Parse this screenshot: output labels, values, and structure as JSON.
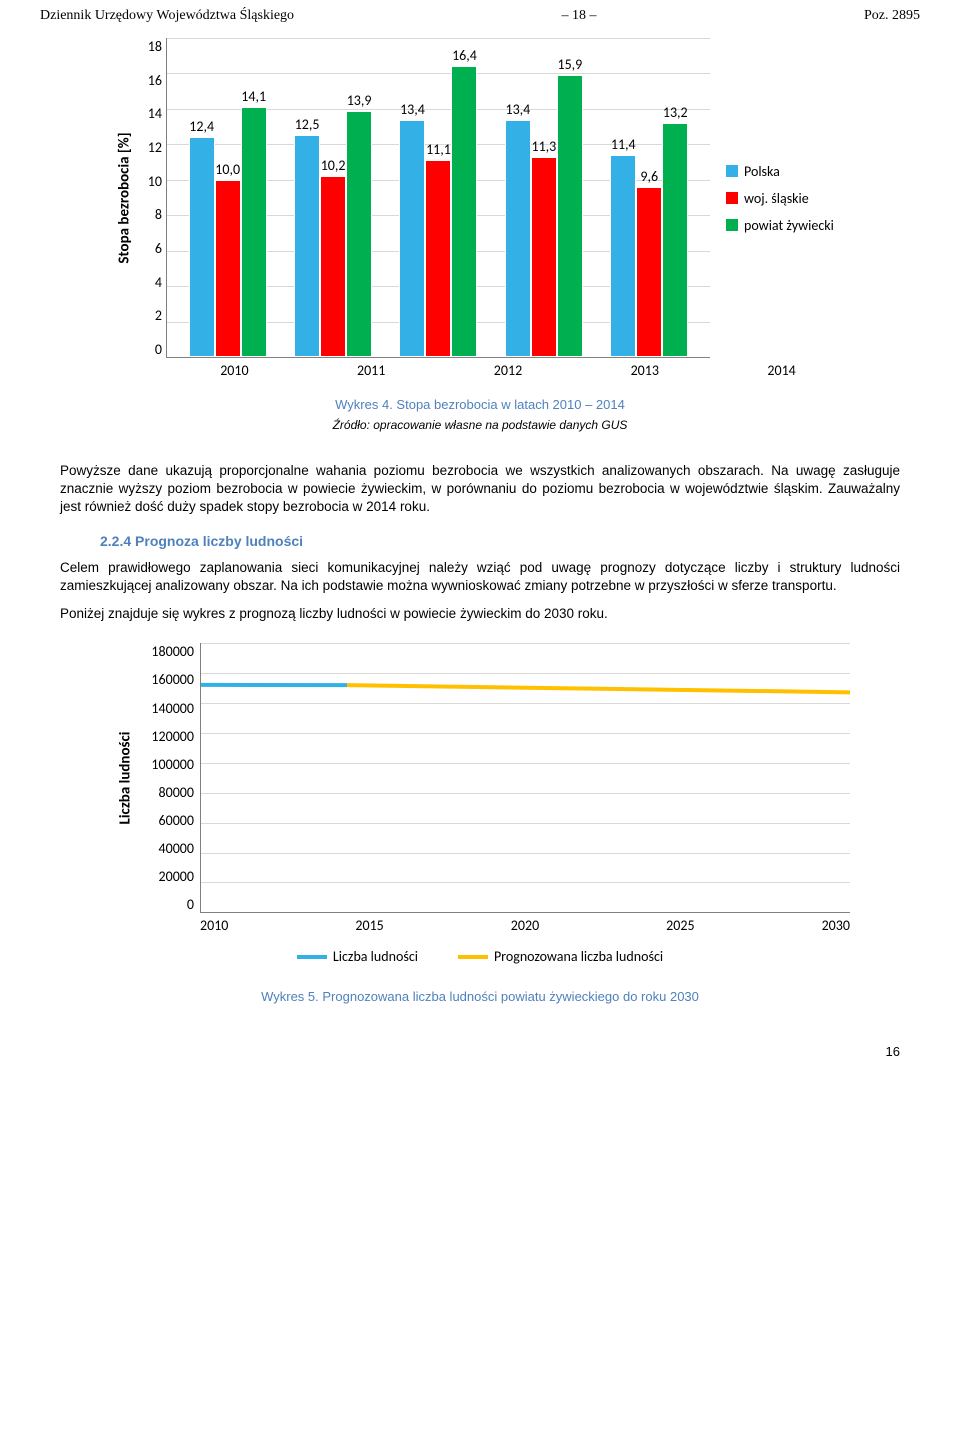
{
  "header": {
    "left": "Dziennik Urzędowy Województwa Śląskiego",
    "center": "– 18 –",
    "right": "Poz. 2895"
  },
  "chart1": {
    "type": "bar",
    "y_label": "Stopa bezrobocia [%]",
    "y_max": 18,
    "y_ticks": [
      "18",
      "16",
      "14",
      "12",
      "10",
      "8",
      "6",
      "4",
      "2",
      "0"
    ],
    "categories": [
      "2010",
      "2011",
      "2012",
      "2013",
      "2014"
    ],
    "series": [
      {
        "name": "Polska",
        "color": "#33b1e6",
        "values": [
          12.4,
          12.5,
          13.4,
          13.4,
          11.4
        ],
        "labels": [
          "12,4",
          "12,5",
          "13,4",
          "13,4",
          "11,4"
        ]
      },
      {
        "name": "woj. śląskie",
        "color": "#ff0000",
        "values": [
          10.0,
          10.2,
          11.1,
          11.3,
          9.6
        ],
        "labels": [
          "10,0",
          "10,2",
          "11,1",
          "11,3",
          "9,6"
        ]
      },
      {
        "name": "powiat żywiecki",
        "color": "#00b050",
        "values": [
          14.1,
          13.9,
          16.4,
          15.9,
          13.2
        ],
        "labels": [
          "14,1",
          "13,9",
          "16,4",
          "15,9",
          "13,2"
        ]
      }
    ],
    "grid_color": "#d9d9d9",
    "bg": "#ffffff",
    "caption": "Wykres 4. Stopa bezrobocia w latach 2010 – 2014",
    "source": "Źródło: opracowanie własne na podstawie danych GUS"
  },
  "paragraphs": {
    "p1": "Powyższe dane ukazują proporcjonalne wahania poziomu bezrobocia we wszystkich analizowanych obszarach. Na uwagę zasługuje znacznie wyższy poziom bezrobocia w powiecie żywieckim, w porównaniu do poziomu bezrobocia w województwie śląskim. Zauważalny jest również dość duży spadek stopy bezrobocia w 2014 roku.",
    "section": "2.2.4 Prognoza liczby ludności",
    "p2": "Celem prawidłowego zaplanowania sieci komunikacyjnej należy wziąć pod uwagę prognozy dotyczące liczby i struktury ludności zamieszkującej analizowany obszar. Na ich podstawie można wywnioskować zmiany potrzebne w przyszłości w sferze transportu.",
    "p3": "Poniżej znajduje się wykres z prognozą liczby ludności w powiecie żywieckim do 2030 roku."
  },
  "chart2": {
    "type": "line",
    "y_label": "Liczba ludności",
    "y_max": 180000,
    "y_ticks": [
      "180000",
      "160000",
      "140000",
      "120000",
      "100000",
      "80000",
      "60000",
      "40000",
      "20000",
      "0"
    ],
    "x_ticks": [
      "2010",
      "2015",
      "2020",
      "2025",
      "2030"
    ],
    "series": [
      {
        "name": "Liczba ludności",
        "color": "#33b1e6",
        "width": 4,
        "x_range": [
          2010,
          2014.5
        ],
        "y": [
          152000,
          151800
        ]
      },
      {
        "name": "Prognozowana liczba ludności",
        "color": "#ffc000",
        "width": 4,
        "x_range": [
          2014.5,
          2030
        ],
        "y": [
          151800,
          147000
        ]
      }
    ],
    "grid_color": "#d9d9d9",
    "caption": "Wykres 5. Prognozowana liczba ludności powiatu żywieckiego do roku 2030"
  },
  "pagenum": "16"
}
